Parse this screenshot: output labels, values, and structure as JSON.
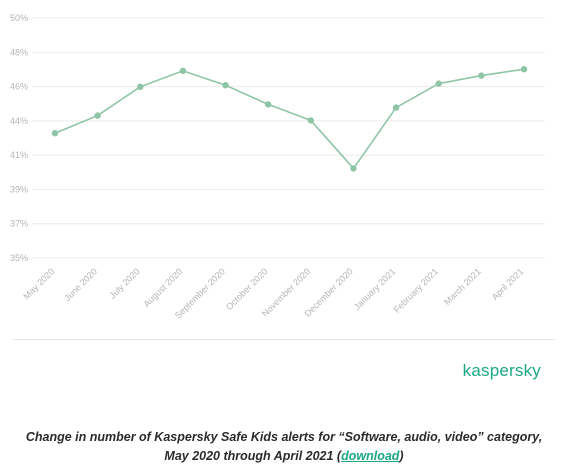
{
  "chart_data": {
    "type": "line",
    "categories": [
      "May 2020",
      "June 2020",
      "July 2020",
      "August 2020",
      "September 2020",
      "October 2020",
      "November 2020",
      "December 2020",
      "January 2021",
      "February 2021",
      "March 2021",
      "April 2021"
    ],
    "values": [
      42.8,
      43.9,
      45.7,
      46.7,
      45.8,
      44.6,
      43.6,
      40.6,
      44.4,
      45.9,
      46.4,
      46.8
    ],
    "ytick_labels": [
      "50%",
      "48%",
      "46%",
      "44%",
      "41%",
      "39%",
      "37%",
      "35%"
    ],
    "ylim": [
      35,
      50
    ],
    "grid": true,
    "series_color": "#8ec5a7"
  },
  "brand": {
    "name": "kaspersky",
    "color": "#1ba885"
  },
  "caption": {
    "line1": "Change in number of Kaspersky Safe Kids alerts for “Software, audio, video” category,",
    "line2_prefix": "May 2020 through April 2021 (",
    "link": "download",
    "line2_suffix": ")"
  }
}
